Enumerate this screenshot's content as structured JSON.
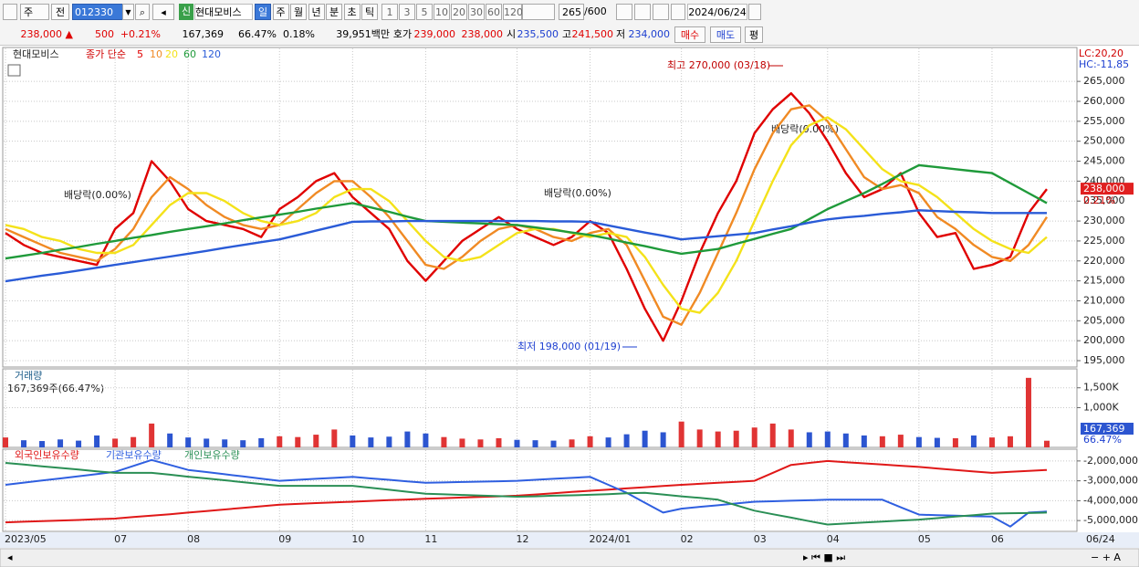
{
  "toolbar": {
    "market": "주",
    "kind": "전",
    "code": "012330",
    "new_badge": "신",
    "name": "현대모비스",
    "periods": [
      "일",
      "주",
      "월",
      "년",
      "분",
      "초",
      "틱"
    ],
    "intervals": [
      "1",
      "3",
      "5",
      "10",
      "20",
      "30",
      "60",
      "120"
    ],
    "count": "265",
    "max_count": "/600",
    "date": "2024/06/24"
  },
  "info_bar": {
    "price": "238,000 ▲",
    "change": "500",
    "change_rate": "+0.21%",
    "volume": "167,369",
    "volume_ratio": "66.47%",
    "turnover": "0.18%",
    "amount": "39,951백만",
    "quote_label": "호가",
    "ask": "239,000",
    "bid": "238,000",
    "open_label": "시",
    "open": "235,500",
    "high_label": "고",
    "high": "241,500",
    "low_label": "저",
    "low": "234,000",
    "buy": "매수",
    "sell": "매도",
    "eval": "평"
  },
  "chart_data": [
    {
      "type": "line",
      "title": "현대모비스",
      "subtitle": "종가 단순",
      "grid": true,
      "categories": [
        "2023/05",
        null,
        null,
        null,
        null,
        null,
        "07",
        null,
        null,
        null,
        "08",
        null,
        null,
        null,
        null,
        "09",
        null,
        null,
        null,
        "10",
        null,
        null,
        null,
        "11",
        null,
        null,
        null,
        null,
        "12",
        null,
        null,
        null,
        "2024/01",
        null,
        null,
        null,
        null,
        "02",
        null,
        null,
        null,
        "03",
        null,
        null,
        null,
        "04",
        null,
        null,
        null,
        null,
        "05",
        null,
        null,
        null,
        "06",
        null,
        null,
        null
      ],
      "series": [
        {
          "name": "5",
          "color": "#e00000",
          "values": [
            227000,
            224000,
            222000,
            221000,
            220000,
            219000,
            228000,
            232000,
            245000,
            240000,
            233000,
            230000,
            229000,
            228000,
            226000,
            233000,
            236000,
            240000,
            242000,
            236000,
            232000,
            228000,
            220000,
            215000,
            220000,
            225000,
            228000,
            231000,
            228000,
            226000,
            224000,
            226000,
            230000,
            227000,
            218000,
            208000,
            200000,
            210000,
            222000,
            232000,
            240000,
            252000,
            258000,
            262000,
            257000,
            250000,
            242000,
            236000,
            238000,
            242000,
            232000,
            226000,
            227000,
            218000,
            219000,
            221000,
            232000,
            238000
          ]
        },
        {
          "name": "10",
          "color": "#f08a24",
          "values": [
            228000,
            226000,
            224000,
            222000,
            221000,
            220000,
            223000,
            228000,
            236000,
            241000,
            238000,
            234000,
            231000,
            229000,
            228000,
            229000,
            233000,
            237000,
            240000,
            240000,
            236000,
            231000,
            225000,
            219000,
            218000,
            221000,
            225000,
            228000,
            229000,
            228000,
            226000,
            225000,
            227000,
            228000,
            224000,
            215000,
            206000,
            204000,
            212000,
            222000,
            232000,
            243000,
            252000,
            258000,
            259000,
            255000,
            248000,
            241000,
            238000,
            239000,
            237000,
            231000,
            228000,
            224000,
            221000,
            220000,
            224000,
            231000
          ]
        },
        {
          "name": "20",
          "color": "#f4e21a",
          "values": [
            229000,
            228000,
            226000,
            225000,
            223000,
            222000,
            222000,
            224000,
            229000,
            234000,
            237000,
            237000,
            235000,
            232000,
            230000,
            229000,
            230000,
            232000,
            236000,
            238000,
            238000,
            235000,
            230000,
            225000,
            221000,
            220000,
            221000,
            224000,
            227000,
            228000,
            228000,
            227000,
            226000,
            227000,
            226000,
            221000,
            214000,
            208000,
            207000,
            212000,
            220000,
            230000,
            240000,
            249000,
            254000,
            256000,
            253000,
            248000,
            243000,
            240000,
            239000,
            236000,
            232000,
            228000,
            225000,
            223000,
            222000,
            226000
          ]
        },
        {
          "name": "60",
          "color": "#1f9a3a",
          "values": [
            220600,
            221300,
            222000,
            222800,
            223500,
            224300,
            225000,
            225800,
            226500,
            227300,
            228000,
            228700,
            229400,
            230200,
            230900,
            231600,
            232300,
            233100,
            233800,
            234500,
            233400,
            232300,
            231100,
            230000,
            229800,
            229600,
            229400,
            229200,
            229000,
            228400,
            227800,
            227100,
            226500,
            225600,
            224600,
            223700,
            222700,
            221800,
            222400,
            223000,
            224300,
            225500,
            226800,
            228000,
            230500,
            233000,
            235000,
            237000,
            239300,
            241700,
            244000,
            243500,
            243000,
            242500,
            242000,
            239500,
            237000,
            234500
          ]
        },
        {
          "name": "120",
          "color": "#2a5bd7",
          "values": [
            214900,
            215600,
            216300,
            216900,
            217600,
            218300,
            219000,
            219700,
            220400,
            221100,
            221800,
            222500,
            223300,
            224000,
            224700,
            225400,
            226500,
            227600,
            228700,
            229800,
            229900,
            229900,
            230000,
            230000,
            230000,
            230000,
            230000,
            230000,
            230000,
            230000,
            229900,
            229900,
            229800,
            228900,
            228000,
            227100,
            226300,
            225400,
            225800,
            226200,
            226600,
            227000,
            227900,
            228700,
            229600,
            230400,
            230900,
            231300,
            231800,
            232200,
            232700,
            232500,
            232300,
            232200,
            232000,
            232000,
            232000,
            232000
          ]
        }
      ],
      "ylim": [
        193400,
        273500
      ],
      "yticks": [
        {
          "value": 195000,
          "label": "195,000"
        },
        {
          "value": 200000,
          "label": "200,000"
        },
        {
          "value": 205000,
          "label": "205,000"
        },
        {
          "value": 210000,
          "label": "210,000"
        },
        {
          "value": 215000,
          "label": "215,000"
        },
        {
          "value": 220000,
          "label": "220,000"
        },
        {
          "value": 225000,
          "label": "225,000"
        },
        {
          "value": 230000,
          "label": "230,000"
        },
        {
          "value": 235000,
          "label": "235,000"
        },
        {
          "value": 240000,
          "label": "240,000"
        },
        {
          "value": 245000,
          "label": "245,000"
        },
        {
          "value": 250000,
          "label": "250,000"
        },
        {
          "value": 255000,
          "label": "255,000"
        },
        {
          "value": 260000,
          "label": "260,000"
        },
        {
          "value": 265000,
          "label": "265,000"
        }
      ],
      "annotations": [
        "최고 270,000 (03/18)",
        "최저 198,000 (01/19)",
        "배당락(0.00%)",
        "배당락(0.00%)",
        "배당락(0.00%)"
      ],
      "last_price_label": "238,000",
      "change_label": "0.21%",
      "lc_label": "LC:20,20",
      "hc_label": "HC:-11,85",
      "x_end_label": "06/24"
    },
    {
      "type": "bar",
      "title": "거래량",
      "subtitle": "167,369주(66.47%)",
      "grid": true,
      "up_color": "#e03434",
      "down_color": "#2c55d0",
      "values": [
        250000,
        180000,
        160000,
        200000,
        170000,
        300000,
        220000,
        260000,
        600000,
        350000,
        250000,
        220000,
        200000,
        180000,
        230000,
        280000,
        260000,
        320000,
        450000,
        300000,
        250000,
        270000,
        400000,
        350000,
        260000,
        220000,
        200000,
        230000,
        190000,
        180000,
        170000,
        200000,
        280000,
        250000,
        330000,
        420000,
        380000,
        650000,
        450000,
        400000,
        420000,
        500000,
        600000,
        450000,
        380000,
        400000,
        350000,
        300000,
        280000,
        320000,
        260000,
        240000,
        230000,
        300000,
        250000,
        280000,
        1750000,
        167369
      ],
      "ylim": [
        0,
        1976000
      ],
      "yticks": [
        {
          "value": 1000000,
          "label": "1,000K"
        },
        {
          "value": 1500000,
          "label": "1,500K"
        }
      ],
      "last_volume_label": "167,369",
      "ratio_label": "66.47%"
    },
    {
      "type": "line",
      "grid": true,
      "series": [
        {
          "name": "외국인보유수량",
          "color": "#e01818",
          "values": [
            -5090000,
            -5060000,
            -5030000,
            -5000000,
            -4970000,
            -4930000,
            -4900000,
            -4820000,
            -4750000,
            -4680000,
            -4600000,
            -4520000,
            -4440000,
            -4360000,
            -4280000,
            -4200000,
            -4160000,
            -4120000,
            -4090000,
            -4050000,
            -4010000,
            -3970000,
            -3940000,
            -3900000,
            -3870000,
            -3840000,
            -3810000,
            -3780000,
            -3750000,
            -3690000,
            -3630000,
            -3560000,
            -3500000,
            -3440000,
            -3380000,
            -3320000,
            -3260000,
            -3200000,
            -3150000,
            -3100000,
            -3050000,
            -3000000,
            -2600000,
            -2200000,
            -2100000,
            -2000000,
            -2060000,
            -2120000,
            -2180000,
            -2240000,
            -2300000,
            -2380000,
            -2450000,
            -2530000,
            -2600000,
            -2550000,
            -2500000,
            -2450000
          ]
        },
        {
          "name": "기관보유수량",
          "color": "#2f5fe0",
          "values": [
            -3200000,
            -3090000,
            -2980000,
            -2880000,
            -2770000,
            -2660000,
            -2550000,
            -2250000,
            -1950000,
            -2200000,
            -2450000,
            -2560000,
            -2670000,
            -2780000,
            -2890000,
            -3000000,
            -2950000,
            -2900000,
            -2850000,
            -2800000,
            -2880000,
            -2950000,
            -3030000,
            -3100000,
            -3080000,
            -3060000,
            -3040000,
            -3020000,
            -3000000,
            -2950000,
            -2900000,
            -2850000,
            -2800000,
            -3200000,
            -3600000,
            -4100000,
            -4600000,
            -4400000,
            -4310000,
            -4230000,
            -4140000,
            -4050000,
            -4030000,
            -4000000,
            -3980000,
            -3950000,
            -3950000,
            -3950000,
            -3950000,
            -4330000,
            -4700000,
            -4730000,
            -4750000,
            -4780000,
            -4800000,
            -5300000,
            -4600000,
            -4550000
          ]
        },
        {
          "name": "개인보유수량",
          "color": "#2a8f55",
          "values": [
            -2100000,
            -2180000,
            -2270000,
            -2350000,
            -2430000,
            -2520000,
            -2600000,
            -2600000,
            -2600000,
            -2690000,
            -2790000,
            -2880000,
            -2970000,
            -3070000,
            -3160000,
            -3250000,
            -3250000,
            -3250000,
            -3250000,
            -3250000,
            -3350000,
            -3450000,
            -3550000,
            -3650000,
            -3680000,
            -3710000,
            -3740000,
            -3770000,
            -3800000,
            -3780000,
            -3750000,
            -3730000,
            -3700000,
            -3670000,
            -3630000,
            -3600000,
            -3690000,
            -3780000,
            -3860000,
            -3950000,
            -4230000,
            -4500000,
            -4680000,
            -4850000,
            -5030000,
            -5200000,
            -5150000,
            -5100000,
            -5050000,
            -5000000,
            -4950000,
            -4880000,
            -4800000,
            -4730000,
            -4650000,
            -4630000,
            -4620000,
            -4600000
          ]
        }
      ],
      "ylim": [
        -5545000,
        -1409000
      ],
      "yticks": [
        {
          "value": -5000000,
          "label": "-5,000,000"
        },
        {
          "value": -4000000,
          "label": "-4,000,000"
        },
        {
          "value": -3000000,
          "label": "-3,000,000"
        },
        {
          "value": -2000000,
          "label": "-2,000,000"
        }
      ]
    }
  ]
}
